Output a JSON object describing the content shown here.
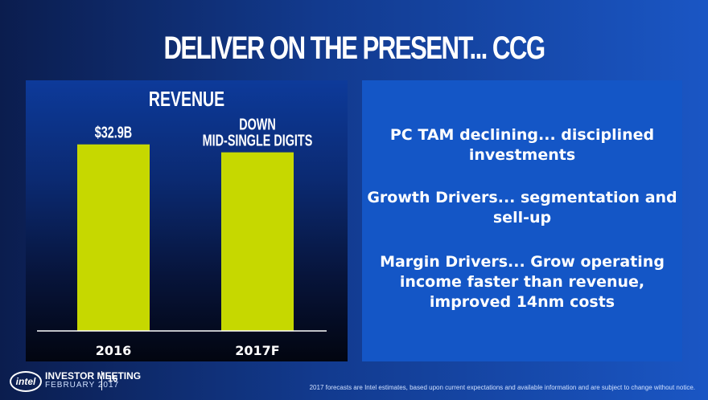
{
  "slide": {
    "title": "DELIVER ON THE PRESENT... CCG",
    "page_number": "16",
    "disclaimer": "2017 forecasts are Intel estimates, based upon current expectations and available information and are subject to change without notice."
  },
  "chart_data": {
    "type": "bar",
    "title": "REVENUE",
    "categories": [
      "2016",
      "2017F"
    ],
    "values": [
      32.9,
      31.5
    ],
    "data_labels": [
      "$32.9B",
      "DOWN\nMID-SINGLE DIGITS"
    ],
    "ylim": [
      0,
      40
    ],
    "bar_color": "#c6d800",
    "xlabel": "",
    "ylabel": ""
  },
  "bullets": [
    "PC TAM declining... disciplined investments",
    "Growth Drivers... segmentation and sell-up",
    "Margin Drivers... Grow operating income faster than revenue, improved 14nm costs"
  ],
  "footer": {
    "logo_text": "intel",
    "meeting_label": "INVESTOR MEETING",
    "month_label": "FEBRUARY 2017"
  }
}
